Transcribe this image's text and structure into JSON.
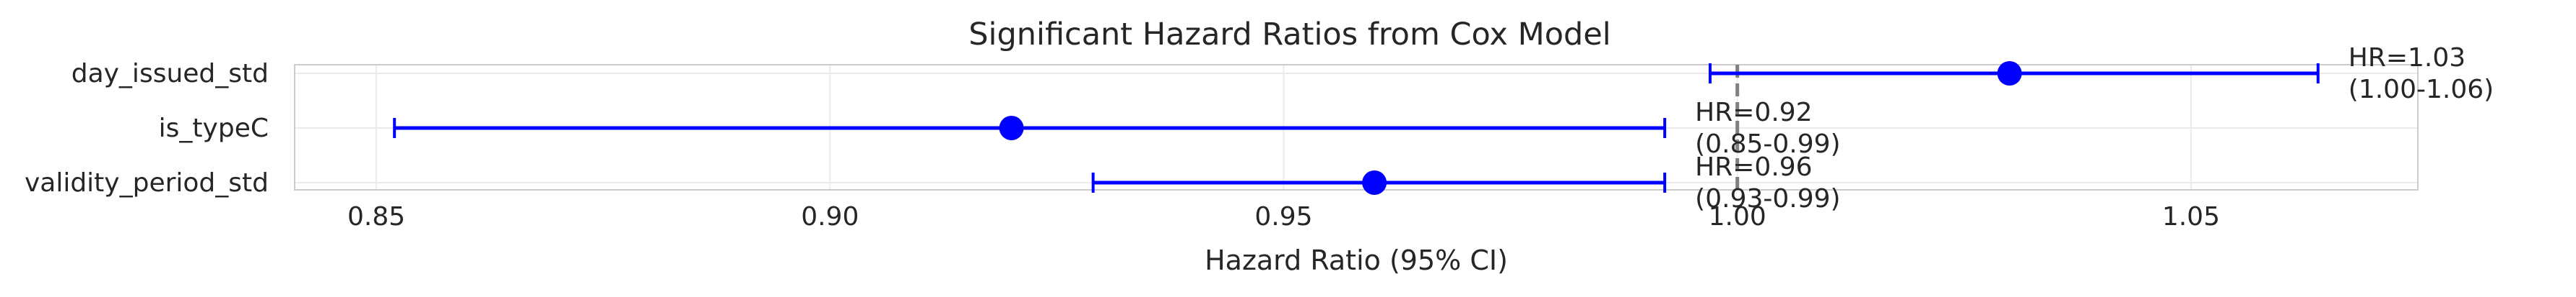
{
  "chart_data": {
    "type": "forest",
    "title": "Significant Hazard Ratios from Cox Model",
    "xlabel": "Hazard Ratio (95% CI)",
    "ylabel": "",
    "xlim": [
      0.841,
      1.075
    ],
    "xticks": [
      {
        "value": 0.85,
        "label": "0.85"
      },
      {
        "value": 0.9,
        "label": "0.90"
      },
      {
        "value": 0.95,
        "label": "0.95"
      },
      {
        "value": 1.0,
        "label": "1.00"
      },
      {
        "value": 1.05,
        "label": "1.05"
      }
    ],
    "reference_line": 1.0,
    "grid": true,
    "marker_color": "#0000ff",
    "reference_color": "#808080",
    "rows": [
      {
        "label": "day_issued_std",
        "hr": 1.03,
        "lo": 0.997,
        "hi": 1.064,
        "annot_line1": "HR=1.03",
        "annot_line2": "(1.00-1.06)"
      },
      {
        "label": "is_typeC",
        "hr": 0.92,
        "lo": 0.852,
        "hi": 0.992,
        "annot_line1": "HR=0.92",
        "annot_line2": "(0.85-0.99)"
      },
      {
        "label": "validity_period_std",
        "hr": 0.96,
        "lo": 0.929,
        "hi": 0.992,
        "annot_line1": "HR=0.96",
        "annot_line2": "(0.93-0.99)"
      }
    ]
  }
}
